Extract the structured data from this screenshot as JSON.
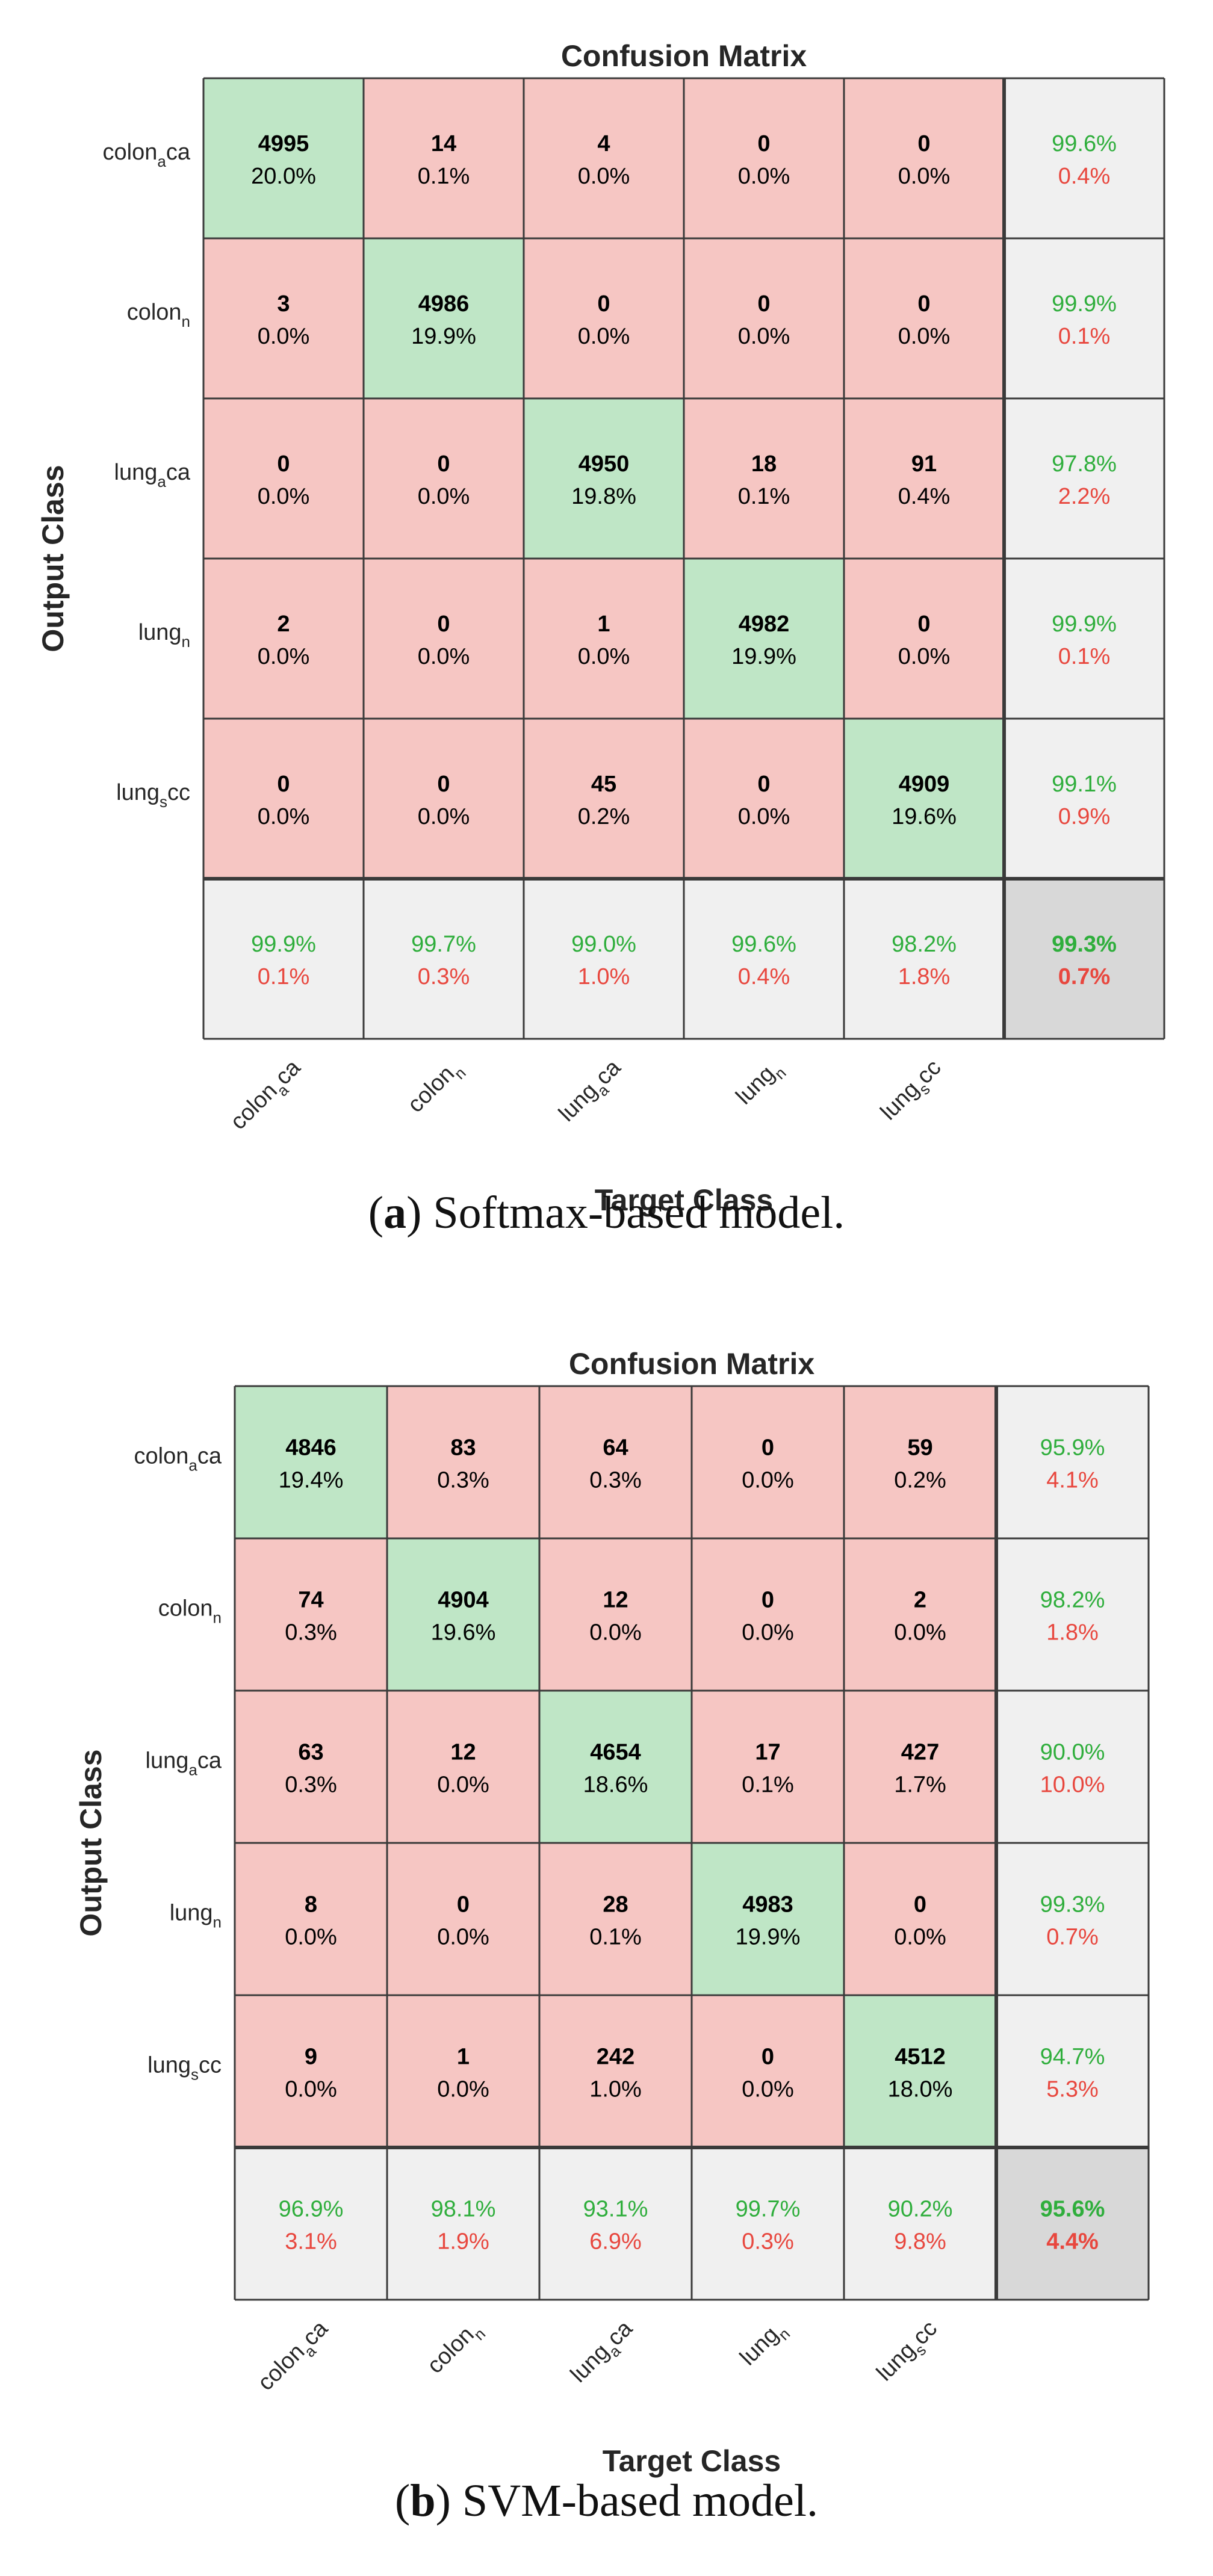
{
  "colors": {
    "correct_fill": "#bfe6c6",
    "error_fill": "#f6c6c3",
    "summary_fill": "#f0f0f0",
    "total_fill": "#d8d8d8",
    "green_text": "#2fae3c",
    "red_text": "#e8473e",
    "grid": "#3a3a3a"
  },
  "chart_data": [
    {
      "type": "heatmap",
      "title": "Confusion Matrix",
      "xlabel": "Target Class",
      "ylabel": "Output Class",
      "classes": [
        {
          "base": "colon",
          "sub": "a",
          "suffix": "ca"
        },
        {
          "base": "colon",
          "sub": "n",
          "suffix": ""
        },
        {
          "base": "lung",
          "sub": "a",
          "suffix": "ca"
        },
        {
          "base": "lung",
          "sub": "n",
          "suffix": ""
        },
        {
          "base": "lung",
          "sub": "s",
          "suffix": "cc"
        }
      ],
      "counts": [
        [
          4995,
          14,
          4,
          0,
          0
        ],
        [
          3,
          4986,
          0,
          0,
          0
        ],
        [
          0,
          0,
          4950,
          18,
          91
        ],
        [
          2,
          0,
          1,
          4982,
          0
        ],
        [
          0,
          0,
          45,
          0,
          4909
        ]
      ],
      "percents": [
        [
          "20.0%",
          "0.1%",
          "0.0%",
          "0.0%",
          "0.0%"
        ],
        [
          "0.0%",
          "19.9%",
          "0.0%",
          "0.0%",
          "0.0%"
        ],
        [
          "0.0%",
          "0.0%",
          "19.8%",
          "0.1%",
          "0.4%"
        ],
        [
          "0.0%",
          "0.0%",
          "0.0%",
          "19.9%",
          "0.0%"
        ],
        [
          "0.0%",
          "0.0%",
          "0.2%",
          "0.0%",
          "19.6%"
        ]
      ],
      "row_summary": [
        [
          "99.6%",
          "0.4%"
        ],
        [
          "99.9%",
          "0.1%"
        ],
        [
          "97.8%",
          "2.2%"
        ],
        [
          "99.9%",
          "0.1%"
        ],
        [
          "99.1%",
          "0.9%"
        ]
      ],
      "col_summary": [
        [
          "99.9%",
          "0.1%"
        ],
        [
          "99.7%",
          "0.3%"
        ],
        [
          "99.0%",
          "1.0%"
        ],
        [
          "99.6%",
          "0.4%"
        ],
        [
          "98.2%",
          "1.8%"
        ]
      ],
      "overall": [
        "99.3%",
        "0.7%"
      ]
    },
    {
      "type": "heatmap",
      "title": "Confusion Matrix",
      "xlabel": "Target Class",
      "ylabel": "Output Class",
      "classes": [
        {
          "base": "colon",
          "sub": "a",
          "suffix": "ca"
        },
        {
          "base": "colon",
          "sub": "n",
          "suffix": ""
        },
        {
          "base": "lung",
          "sub": "a",
          "suffix": "ca"
        },
        {
          "base": "lung",
          "sub": "n",
          "suffix": ""
        },
        {
          "base": "lung",
          "sub": "s",
          "suffix": "cc"
        }
      ],
      "counts": [
        [
          4846,
          83,
          64,
          0,
          59
        ],
        [
          74,
          4904,
          12,
          0,
          2
        ],
        [
          63,
          12,
          4654,
          17,
          427
        ],
        [
          8,
          0,
          28,
          4983,
          0
        ],
        [
          9,
          1,
          242,
          0,
          4512
        ]
      ],
      "percents": [
        [
          "19.4%",
          "0.3%",
          "0.3%",
          "0.0%",
          "0.2%"
        ],
        [
          "0.3%",
          "19.6%",
          "0.0%",
          "0.0%",
          "0.0%"
        ],
        [
          "0.3%",
          "0.0%",
          "18.6%",
          "0.1%",
          "1.7%"
        ],
        [
          "0.0%",
          "0.0%",
          "0.1%",
          "19.9%",
          "0.0%"
        ],
        [
          "0.0%",
          "0.0%",
          "1.0%",
          "0.0%",
          "18.0%"
        ]
      ],
      "row_summary": [
        [
          "95.9%",
          "4.1%"
        ],
        [
          "98.2%",
          "1.8%"
        ],
        [
          "90.0%",
          "10.0%"
        ],
        [
          "99.3%",
          "0.7%"
        ],
        [
          "94.7%",
          "5.3%"
        ]
      ],
      "col_summary": [
        [
          "96.9%",
          "3.1%"
        ],
        [
          "98.1%",
          "1.9%"
        ],
        [
          "93.1%",
          "6.9%"
        ],
        [
          "99.7%",
          "0.3%"
        ],
        [
          "90.2%",
          "9.8%"
        ]
      ],
      "overall": [
        "95.6%",
        "4.4%"
      ]
    }
  ],
  "captions": {
    "a": {
      "letter": "a",
      "text": "Softmax-based model."
    },
    "b": {
      "letter": "b",
      "text": "SVM-based model."
    }
  }
}
